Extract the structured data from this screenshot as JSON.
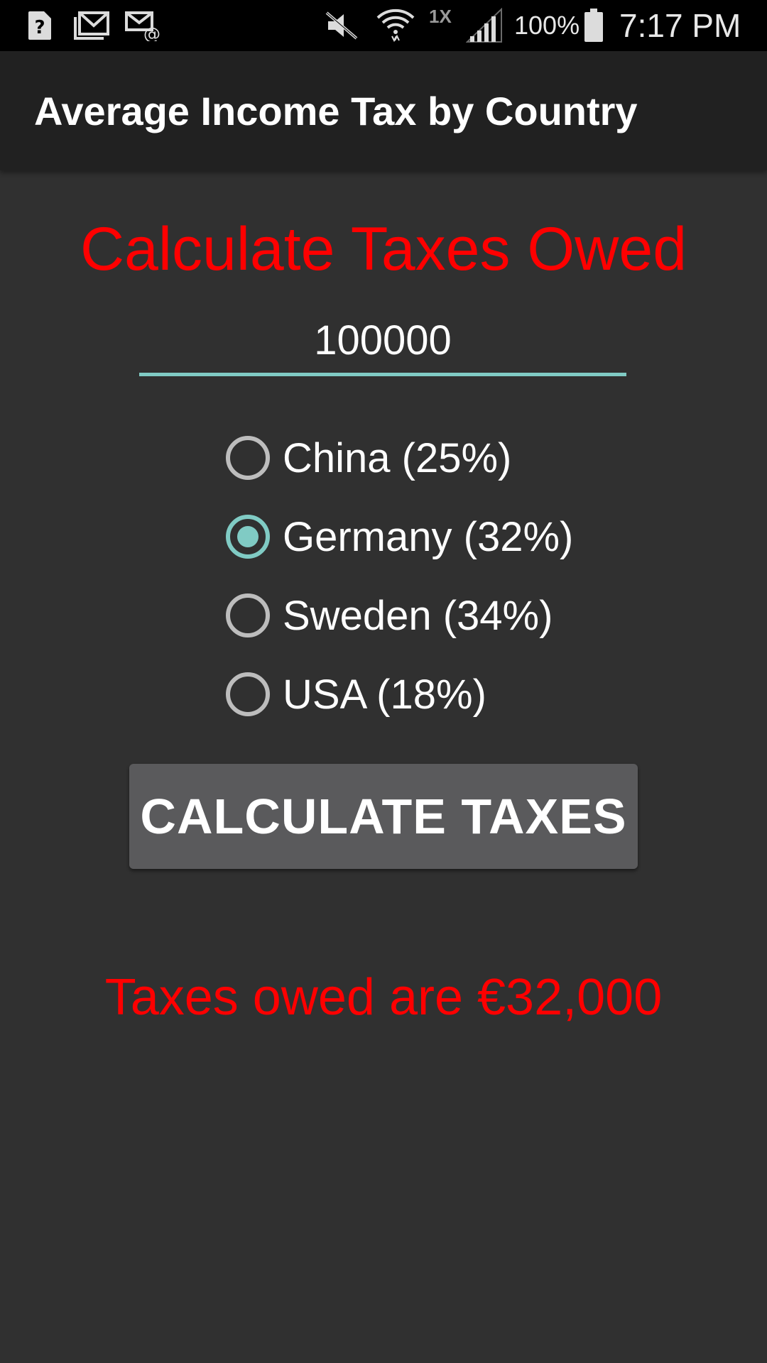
{
  "status_bar": {
    "icons": [
      "unknown-file-icon",
      "gmail-icon",
      "email-icon",
      "mute-icon",
      "wifi-icon",
      "signal-icon",
      "battery-icon"
    ],
    "network_label": "1X",
    "battery": "100%",
    "time": "7:17 PM"
  },
  "app_bar": {
    "title": "Average Income Tax by Country"
  },
  "main": {
    "heading": "Calculate Taxes Owed",
    "income_value": "100000",
    "countries": [
      {
        "label": "China (25%)",
        "checked": false
      },
      {
        "label": "Germany (32%)",
        "checked": true
      },
      {
        "label": "Sweden (34%)",
        "checked": false
      },
      {
        "label": "USA (18%)",
        "checked": false
      }
    ],
    "calculate_label": "CALCULATE TAXES",
    "result": "Taxes owed are €32,000"
  },
  "colors": {
    "background": "#303030",
    "app_bar": "#212121",
    "accent": "#80cbc4",
    "heading_red": "#ff0000",
    "button": "#5a5a5c"
  }
}
